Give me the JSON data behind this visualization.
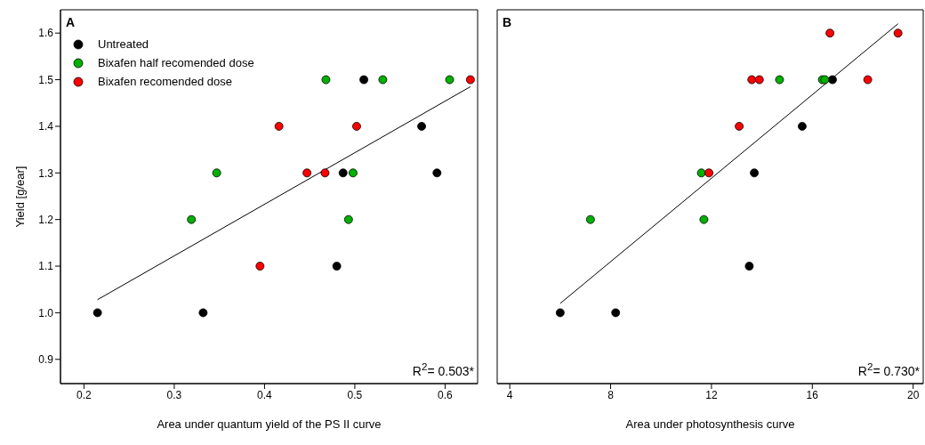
{
  "chart_data": [
    {
      "type": "scatter",
      "ylabel": "Yield [g/ear]",
      "xlabel": "Area under quantum yield of the PS II curve",
      "annotations": [
        "A",
        "R$^{2}$= 0.503*"
      ],
      "xlim": [
        0.174,
        0.636
      ],
      "xticks": [
        0.2,
        0.3,
        0.4,
        0.5,
        0.6
      ],
      "ylim": [
        0.848,
        1.65
      ],
      "yticks": [
        0.9,
        {
          "value": 1.0,
          "label": "1.0"
        },
        1.1,
        1.2,
        1.3,
        1.4,
        1.5,
        1.6
      ],
      "legend": "top left",
      "marker": "circle",
      "series": [
        {
          "name": "Untreated",
          "color": "#000000",
          "x": [
            0.215,
            0.332,
            0.48,
            0.487,
            0.51,
            0.574,
            0.591
          ],
          "values": [
            1.0,
            1.0,
            1.1,
            1.3,
            1.5,
            1.4,
            1.3
          ]
        },
        {
          "name": "Bixafen half recomended dose",
          "color": "#00b000",
          "x": [
            0.319,
            0.347,
            0.468,
            0.493,
            0.498,
            0.531,
            0.605
          ],
          "values": [
            1.2,
            1.3,
            1.5,
            1.2,
            1.3,
            1.5,
            1.5
          ]
        },
        {
          "name": "Bixafen recomended dose",
          "color": "#ff0000",
          "x": [
            0.395,
            0.416,
            0.447,
            0.467,
            0.502,
            0.628
          ],
          "values": [
            1.1,
            1.4,
            1.3,
            1.3,
            1.4,
            1.5
          ]
        },
        {
          "type": "line",
          "marker": "none",
          "color": "#000000",
          "x": [
            0.215,
            0.628
          ],
          "values": [
            1.028,
            1.485
          ]
        }
      ]
    },
    {
      "type": "scatter",
      "xlabel": "Area under photosynthesis curve",
      "annotations": [
        "B",
        "R$^{2}$= 0.730*"
      ],
      "xlim": [
        3.5,
        20.4
      ],
      "xticks": [
        4,
        8,
        12,
        16,
        20
      ],
      "ylim": [
        0.848,
        1.65
      ],
      "yticks": [
        0.9,
        1.0,
        1.1,
        1.2,
        1.3,
        1.4,
        1.5,
        1.6
      ],
      "tick_labels": "x",
      "marker": "circle",
      "series": [
        {
          "color": "#000000",
          "x": [
            6.0,
            8.2,
            13.5,
            13.7,
            15.6,
            16.8
          ],
          "values": [
            1.0,
            1.0,
            1.1,
            1.3,
            1.4,
            1.5
          ]
        },
        {
          "color": "#00b000",
          "x": [
            7.2,
            11.6,
            11.7,
            14.7,
            16.4,
            16.5
          ],
          "values": [
            1.2,
            1.3,
            1.2,
            1.5,
            1.5,
            1.5
          ]
        },
        {
          "color": "#ff0000",
          "x": [
            11.9,
            13.1,
            13.6,
            13.9,
            16.7,
            18.2,
            19.4
          ],
          "values": [
            1.3,
            1.4,
            1.5,
            1.5,
            1.6,
            1.5,
            1.6
          ]
        },
        {
          "type": "line",
          "marker": "none",
          "color": "#000000",
          "x": [
            6.0,
            19.4
          ],
          "values": [
            1.02,
            1.62
          ]
        }
      ]
    }
  ]
}
